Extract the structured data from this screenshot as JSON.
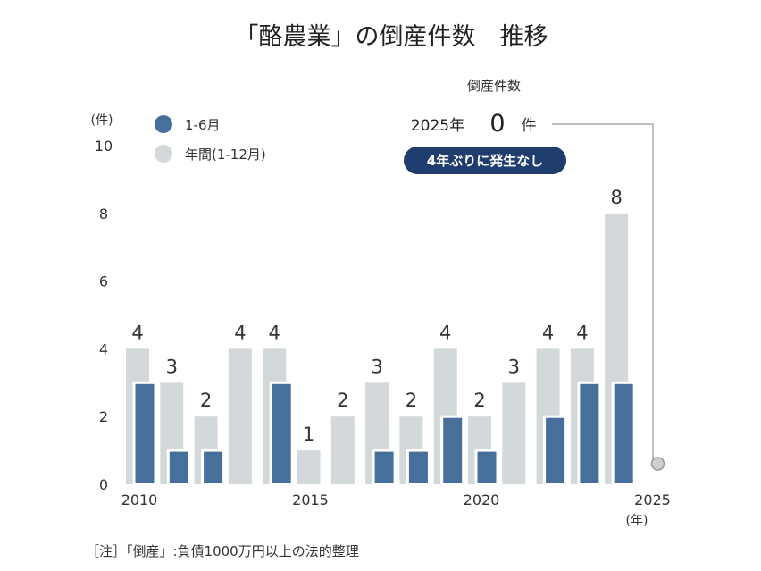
{
  "title": "「酪農業」の倒産件数　推移",
  "colors": {
    "h1": "#46709B",
    "annual": "#D3D8DB",
    "badge": "#1F3C6E"
  },
  "legend": {
    "h1": "1-6月",
    "annual": "年間(1-12月)"
  },
  "annotation": {
    "label": "倒産件数",
    "year": "2025年",
    "value": "0",
    "unit": "件",
    "badge": "4年ぶりに発生なし"
  },
  "note": "［注］「倒産」:負債1000万円以上の法的整理",
  "chart_data": {
    "type": "bar",
    "title": "「酪農業」の倒産件数　推移",
    "ylabel": "(件)",
    "xlabel": "(年)",
    "ylim": [
      0,
      10
    ],
    "yticks": [
      0,
      2,
      4,
      6,
      8,
      10
    ],
    "xtick_labels": [
      "2010",
      "2015",
      "2020",
      "2025"
    ],
    "categories": [
      "2010",
      "2011",
      "2012",
      "2013",
      "2014",
      "2015",
      "2016",
      "2017",
      "2018",
      "2019",
      "2020",
      "2021",
      "2022",
      "2023",
      "2024",
      "2025"
    ],
    "series": [
      {
        "name": "年間(1-12月)",
        "values": [
          4,
          3,
          2,
          4,
          4,
          1,
          2,
          3,
          2,
          4,
          2,
          3,
          4,
          4,
          8,
          null
        ]
      },
      {
        "name": "1-6月",
        "values": [
          3,
          1,
          1,
          0,
          3,
          0,
          0,
          1,
          1,
          2,
          1,
          0,
          2,
          3,
          3,
          0
        ]
      }
    ],
    "data_labels": [
      "4",
      "3",
      "2",
      "4",
      "4",
      "1",
      "2",
      "3",
      "2",
      "4",
      "2",
      "3",
      "4",
      "4",
      "8"
    ]
  }
}
